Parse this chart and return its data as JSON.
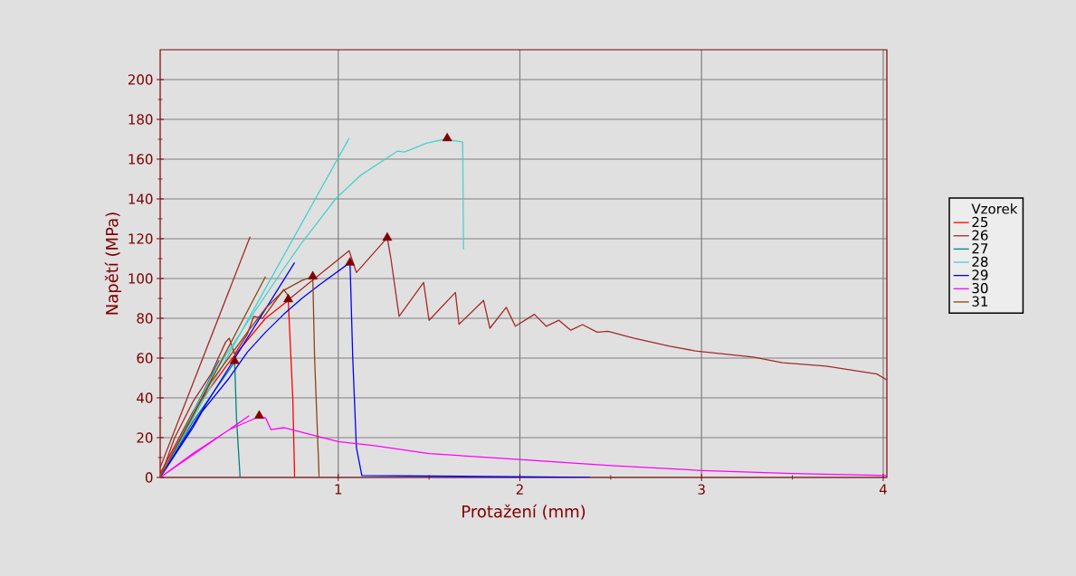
{
  "chart_data": {
    "type": "line",
    "xlabel": "Protažení (mm)",
    "ylabel": "Napětí (MPa)",
    "legend_title": "Vzorek",
    "legend": "right",
    "grid": true,
    "line_style": "solid",
    "marker": "none",
    "xlim": [
      0.02,
      4.02
    ],
    "ylim": [
      0,
      215
    ],
    "xticks": [
      1,
      2,
      3,
      4
    ],
    "yticks": [
      0,
      20,
      40,
      60,
      80,
      100,
      120,
      140,
      160,
      180,
      200
    ],
    "series": [
      {
        "name": "25",
        "color": "#ff0000",
        "x": [
          0.02,
          0.2,
          0.4,
          0.6,
          0.725,
          0.75,
          0.76
        ],
        "values": [
          2,
          33,
          58,
          80,
          89,
          40,
          0
        ]
      },
      {
        "name": "26",
        "color": "#a52a2a",
        "x": [
          0.02,
          0.515,
          null,
          0.02,
          0.1,
          0.2,
          0.3,
          0.38,
          0.4,
          0.43,
          0.5,
          0.535,
          0.585,
          0.7,
          0.735,
          1.06,
          1.1,
          1.27,
          1.29,
          1.335,
          1.47,
          1.5,
          1.645,
          1.665,
          1.8,
          1.835,
          1.925,
          1.975,
          2.08,
          2.145,
          2.215,
          2.28,
          2.345,
          2.425,
          2.485,
          2.625,
          2.825,
          2.965,
          3.285,
          3.445,
          3.685,
          3.965,
          4.02
        ],
        "values": [
          5,
          121,
          null,
          0,
          20,
          38,
          52,
          68,
          70,
          62,
          72,
          81,
          80,
          94.5,
          90,
          114,
          103,
          120.5,
          110,
          81,
          98,
          79,
          93,
          77,
          89,
          75,
          85.5,
          76,
          82,
          76,
          79,
          74,
          76.8,
          73,
          73.5,
          70,
          66,
          63.6,
          60.5,
          57.7,
          56,
          52,
          49
        ]
      },
      {
        "name": "27",
        "color": "#008080",
        "x": [
          0.02,
          0.345,
          null,
          0.02,
          0.2,
          0.43,
          0.44,
          0.46
        ],
        "values": [
          0,
          59,
          null,
          0,
          28,
          58,
          30,
          0
        ]
      },
      {
        "name": "28",
        "color": "#48d1cc",
        "x": [
          0.02,
          1.06,
          null,
          0.02,
          0.3,
          0.5,
          0.7,
          0.8,
          0.885,
          0.985,
          1.125,
          1.325,
          1.365,
          1.485,
          1.585,
          1.685,
          1.69
        ],
        "values": [
          0,
          170.5,
          null,
          0,
          50,
          78,
          105,
          118,
          128,
          140,
          152,
          164,
          163.6,
          168,
          170,
          168.6,
          114.5
        ]
      },
      {
        "name": "29",
        "color": "#0000ff",
        "x": [
          0.02,
          0.76,
          null,
          0.02,
          0.2,
          0.25,
          0.4,
          0.5,
          0.6,
          0.7,
          0.8,
          0.9,
          1.065,
          1.08,
          1.1,
          1.13,
          2.385
        ],
        "values": [
          0,
          108,
          null,
          0,
          25,
          33,
          50,
          63,
          73,
          82,
          90,
          97,
          108,
          60,
          15,
          1,
          0
        ]
      },
      {
        "name": "30",
        "color": "#ff00ff",
        "x": [
          0.02,
          0.51,
          null,
          0.02,
          0.2,
          0.4,
          0.55,
          0.6,
          0.63,
          0.7,
          1.0,
          1.2,
          1.5,
          2.0,
          2.5,
          3.0,
          3.5,
          4.02
        ],
        "values": [
          0,
          31,
          null,
          0,
          12,
          24,
          30,
          30,
          24,
          25,
          18,
          16,
          12,
          9,
          6,
          3.5,
          2,
          1
        ]
      },
      {
        "name": "31",
        "color": "#8b4513",
        "x": [
          0.02,
          0.6,
          null,
          0.02,
          0.3,
          0.5,
          0.6,
          0.7,
          0.8,
          0.86,
          0.87,
          0.895
        ],
        "values": [
          0,
          101,
          null,
          0,
          48,
          73,
          85,
          94,
          99,
          101,
          60,
          0
        ]
      },
      {
        "type": "scatter",
        "marker": "triangle",
        "color": "#800000",
        "x": [
          0.725,
          1.27,
          0.43,
          1.6,
          1.065,
          0.565,
          0.86
        ],
        "values": [
          89.5,
          120.5,
          58.5,
          170.5,
          108,
          31,
          101
        ]
      }
    ]
  }
}
